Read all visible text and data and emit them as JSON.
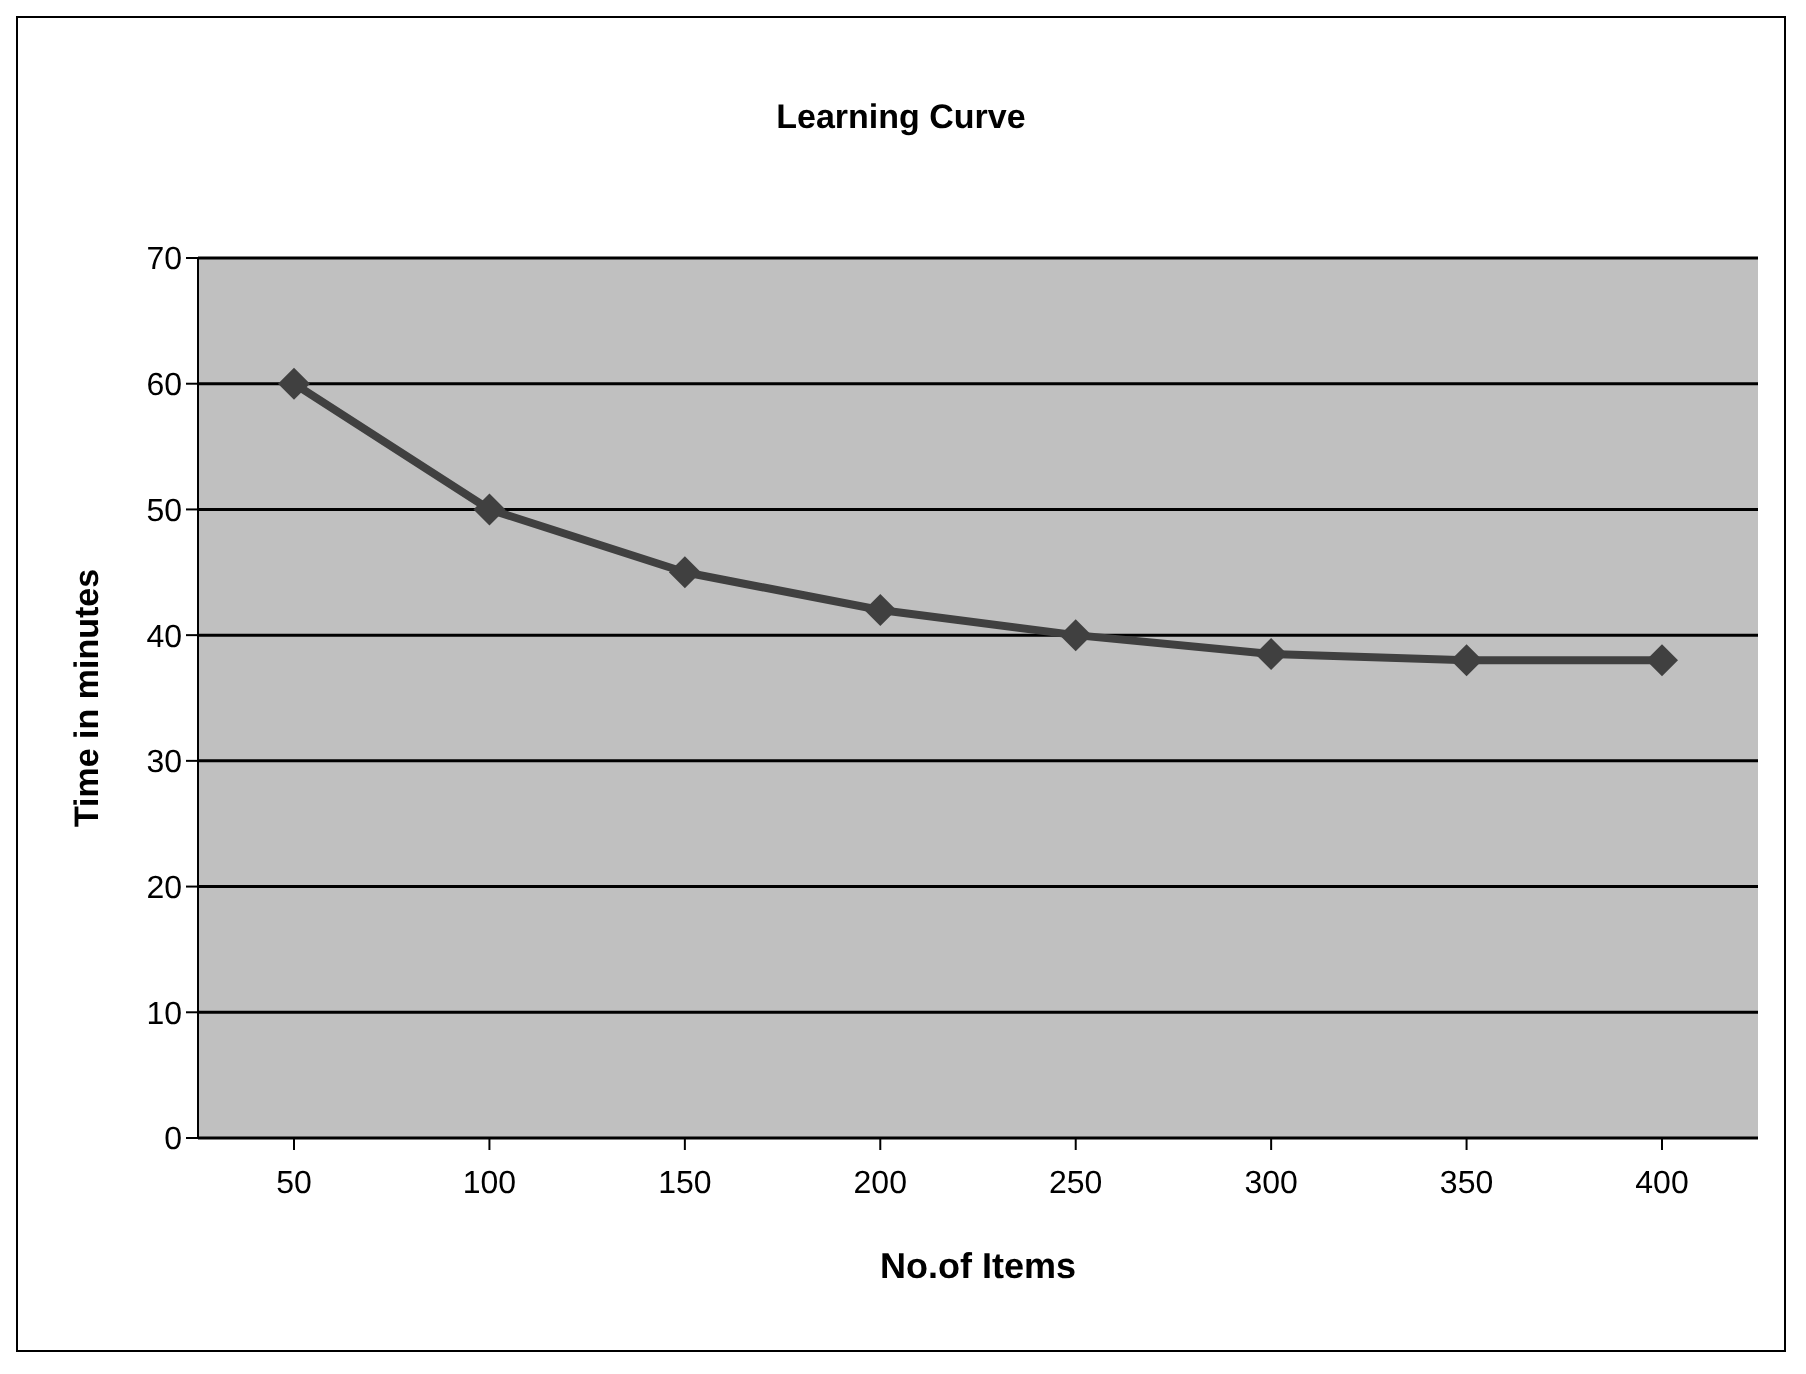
{
  "chart_data": {
    "type": "line",
    "title": "Learning Curve",
    "xlabel": "No.of Items",
    "ylabel": "Time in minutes",
    "categories": [
      "50",
      "100",
      "150",
      "200",
      "250",
      "300",
      "350",
      "400"
    ],
    "series": [
      {
        "color": "#404040",
        "values": [
          60,
          50,
          45,
          42,
          40,
          38.5,
          38,
          38
        ]
      }
    ],
    "ylim": [
      0,
      70
    ],
    "yticks": [
      0,
      10,
      20,
      30,
      40,
      50,
      60,
      70
    ],
    "grid": "y",
    "legend": false,
    "marker": "diamond",
    "line_style": "solid"
  }
}
